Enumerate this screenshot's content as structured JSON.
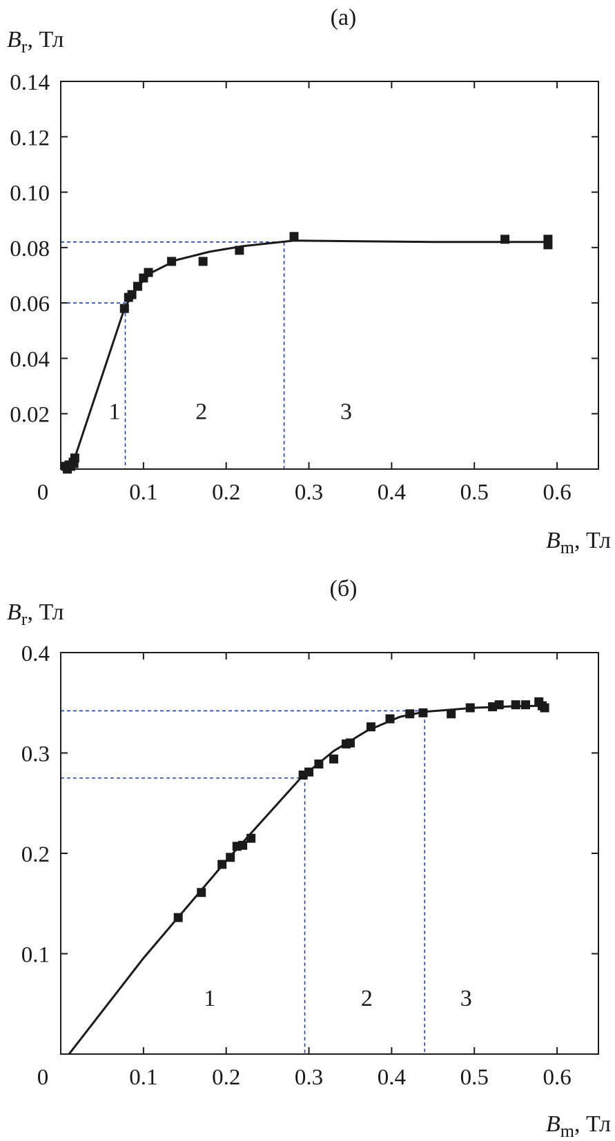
{
  "chart_data": [
    {
      "type": "scatter",
      "panel_label": "(a)",
      "ylabel": {
        "symbol": "B",
        "subscript": "r",
        "unit": ", Тл"
      },
      "xlabel": {
        "symbol": "B",
        "subscript": "m",
        "unit": ", Тл"
      },
      "xlim": [
        0,
        0.65
      ],
      "ylim": [
        0,
        0.14
      ],
      "x_ticks": [
        0,
        0.1,
        0.2,
        0.3,
        0.4,
        0.5,
        0.6
      ],
      "x_tick_labels": [
        "0",
        "0.1",
        "0.2",
        "0.3",
        "0.4",
        "0.5",
        "0.6"
      ],
      "y_ticks": [
        0.02,
        0.04,
        0.06,
        0.08,
        0.1,
        0.12,
        0.14
      ],
      "y_tick_labels": [
        "0.02",
        "0.04",
        "0.06",
        "0.08",
        "0.10",
        "0.12",
        "0.14"
      ],
      "grid": false,
      "points": [
        [
          0.006,
          0.001
        ],
        [
          0.008,
          0.0
        ],
        [
          0.01,
          0.0015
        ],
        [
          0.012,
          0.001
        ],
        [
          0.015,
          0.0025
        ],
        [
          0.016,
          0.002
        ],
        [
          0.017,
          0.004
        ],
        [
          0.077,
          0.058
        ],
        [
          0.082,
          0.062
        ],
        [
          0.086,
          0.063
        ],
        [
          0.093,
          0.066
        ],
        [
          0.1,
          0.069
        ],
        [
          0.106,
          0.071
        ],
        [
          0.134,
          0.075
        ],
        [
          0.172,
          0.075
        ],
        [
          0.216,
          0.079
        ],
        [
          0.282,
          0.084
        ],
        [
          0.537,
          0.083
        ],
        [
          0.589,
          0.083
        ],
        [
          0.589,
          0.081
        ]
      ],
      "curve": [
        [
          0.005,
          0.0
        ],
        [
          0.018,
          0.005
        ],
        [
          0.077,
          0.058
        ],
        [
          0.09,
          0.065
        ],
        [
          0.11,
          0.071
        ],
        [
          0.14,
          0.0755
        ],
        [
          0.18,
          0.0785
        ],
        [
          0.22,
          0.0805
        ],
        [
          0.26,
          0.0818
        ],
        [
          0.282,
          0.0825
        ],
        [
          0.35,
          0.0823
        ],
        [
          0.45,
          0.082
        ],
        [
          0.589,
          0.082
        ]
      ],
      "guides": [
        {
          "x": 0.078,
          "y": 0.06
        },
        {
          "x": 0.27,
          "y": 0.082
        }
      ],
      "region_labels": [
        {
          "text": "1",
          "x": 0.065,
          "y": 0.018
        },
        {
          "text": "2",
          "x": 0.17,
          "y": 0.018
        },
        {
          "text": "3",
          "x": 0.345,
          "y": 0.018
        }
      ],
      "marker_color": "#1a1a1a",
      "guide_color": "#1f3fa6"
    },
    {
      "type": "scatter",
      "panel_label": "(б)",
      "ylabel": {
        "symbol": "B",
        "subscript": "r",
        "unit": ", Тл"
      },
      "xlabel": {
        "symbol": "B",
        "subscript": "m",
        "unit": ", Тл"
      },
      "xlim": [
        0,
        0.65
      ],
      "ylim": [
        0,
        0.4
      ],
      "x_ticks": [
        0,
        0.1,
        0.2,
        0.3,
        0.4,
        0.5,
        0.6
      ],
      "x_tick_labels": [
        "0",
        "0.1",
        "0.2",
        "0.3",
        "0.4",
        "0.5",
        "0.6"
      ],
      "y_ticks": [
        0.1,
        0.2,
        0.3,
        0.4
      ],
      "y_tick_labels": [
        "0.1",
        "0.2",
        "0.3",
        "0.4"
      ],
      "grid": false,
      "points": [
        [
          0.142,
          0.136
        ],
        [
          0.17,
          0.161
        ],
        [
          0.195,
          0.189
        ],
        [
          0.205,
          0.196
        ],
        [
          0.213,
          0.207
        ],
        [
          0.22,
          0.208
        ],
        [
          0.23,
          0.215
        ],
        [
          0.293,
          0.278
        ],
        [
          0.3,
          0.281
        ],
        [
          0.312,
          0.289
        ],
        [
          0.33,
          0.294
        ],
        [
          0.345,
          0.309
        ],
        [
          0.35,
          0.31
        ],
        [
          0.375,
          0.326
        ],
        [
          0.398,
          0.334
        ],
        [
          0.422,
          0.339
        ],
        [
          0.438,
          0.34
        ],
        [
          0.472,
          0.339
        ],
        [
          0.495,
          0.345
        ],
        [
          0.522,
          0.346
        ],
        [
          0.53,
          0.348
        ],
        [
          0.55,
          0.348
        ],
        [
          0.562,
          0.348
        ],
        [
          0.578,
          0.351
        ],
        [
          0.582,
          0.347
        ],
        [
          0.585,
          0.345
        ]
      ],
      "curve": [
        [
          0.01,
          0.0
        ],
        [
          0.1,
          0.0955
        ],
        [
          0.2,
          0.1925
        ],
        [
          0.29,
          0.275
        ],
        [
          0.33,
          0.302
        ],
        [
          0.37,
          0.322
        ],
        [
          0.41,
          0.336
        ],
        [
          0.44,
          0.341
        ],
        [
          0.5,
          0.345
        ],
        [
          0.55,
          0.3465
        ],
        [
          0.585,
          0.347
        ]
      ],
      "guides": [
        {
          "x": 0.295,
          "y": 0.275
        },
        {
          "x": 0.44,
          "y": 0.342
        }
      ],
      "region_labels": [
        {
          "text": "1",
          "x": 0.18,
          "y": 0.048
        },
        {
          "text": "2",
          "x": 0.37,
          "y": 0.048
        },
        {
          "text": "3",
          "x": 0.49,
          "y": 0.048
        }
      ],
      "marker_color": "#1a1a1a",
      "guide_color": "#1f3fa6"
    }
  ]
}
